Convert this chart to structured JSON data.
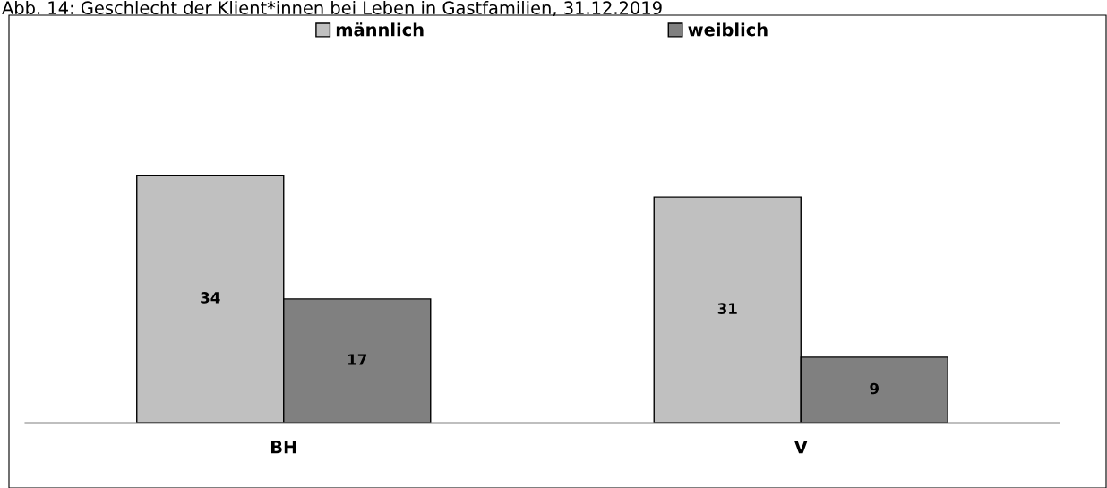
{
  "chart_data": {
    "type": "bar",
    "title": "Abb. 14: Geschlecht der Klient*innen bei Leben in Gastfamilien, 31.12.2019",
    "categories": [
      "BH",
      "V"
    ],
    "series": [
      {
        "name": "männlich",
        "color": "#c0c0c0",
        "values": [
          34,
          31
        ]
      },
      {
        "name": "weiblich",
        "color": "#808080",
        "values": [
          17,
          9
        ]
      }
    ],
    "ylim": [
      0,
      56
    ],
    "data_labels": true,
    "legend": "top",
    "grid": false,
    "tick_labels": "x"
  }
}
